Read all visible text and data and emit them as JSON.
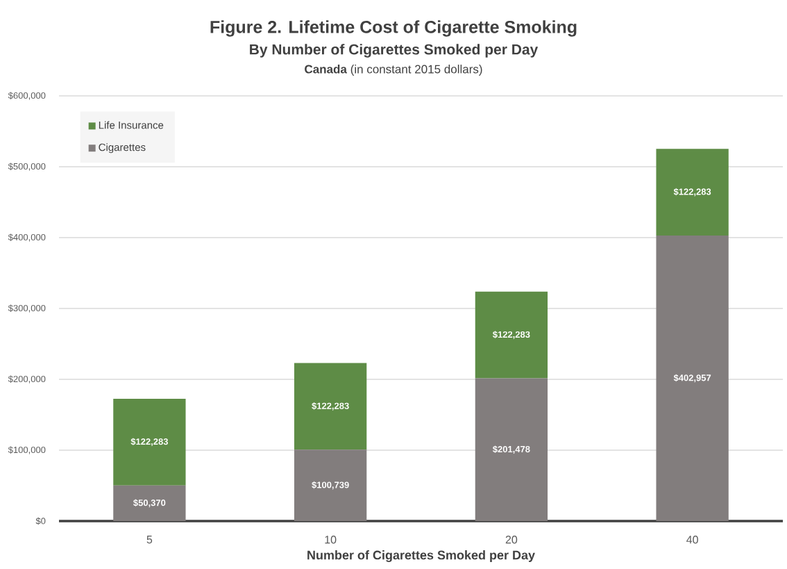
{
  "chart_data": {
    "type": "bar",
    "stacked": true,
    "title": "Figure 2. Lifetime Cost of Cigarette Smoking",
    "subtitle": "By Number of Cigarettes Smoked per Day",
    "annotations": [
      "**Canada** (in constant 2015 dollars)"
    ],
    "xlabel": "Number of Cigarettes Smoked per Day",
    "categories": [
      "5",
      "10",
      "20",
      "40"
    ],
    "series": [
      {
        "name": "Cigarettes",
        "color": "#827d7d",
        "values": [
          50370,
          100739,
          201478,
          402957
        ],
        "value_labels": [
          "$50,370",
          "$100,739",
          "$201,478",
          "$402,957"
        ]
      },
      {
        "name": "Life Insurance",
        "color": "#5e8c46",
        "values": [
          122283,
          122283,
          122283,
          122283
        ],
        "value_labels": [
          "$122,283",
          "$122,283",
          "$122,283",
          "$122,283"
        ]
      }
    ],
    "ylim": [
      0,
      600000
    ],
    "yticks": [
      {
        "value": 0,
        "label": "$0"
      },
      {
        "value": 100000,
        "label": "$100,000"
      },
      {
        "value": 200000,
        "label": "$200,000"
      },
      {
        "value": 300000,
        "label": "$300,000"
      },
      {
        "value": 400000,
        "label": "$400,000"
      },
      {
        "value": 500000,
        "label": "$500,000"
      },
      {
        "value": 600000,
        "label": "$600,000"
      }
    ],
    "grid": "y",
    "legend": "top left"
  }
}
